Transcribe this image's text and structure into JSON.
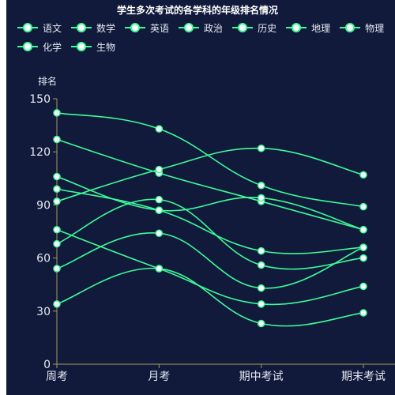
{
  "chart_data": {
    "type": "line",
    "title": "学生多次考试的各学科的年级排名情况",
    "ylabel": "排名",
    "xlabel": "",
    "ylim": [
      0,
      150
    ],
    "yticks": [
      0,
      30,
      60,
      90,
      120,
      150
    ],
    "categories": [
      "周考",
      "月考",
      "期中考试",
      "期末考试"
    ],
    "legend_position": "top",
    "series": [
      {
        "name": "语文",
        "values": [
          142,
          133,
          101,
          89
        ]
      },
      {
        "name": "数学",
        "values": [
          127,
          108,
          92,
          76
        ]
      },
      {
        "name": "英语",
        "values": [
          106,
          87,
          94,
          76
        ]
      },
      {
        "name": "政治",
        "values": [
          99,
          87,
          64,
          66
        ]
      },
      {
        "name": "历史",
        "values": [
          92,
          110,
          122,
          107
        ]
      },
      {
        "name": "地理",
        "values": [
          76,
          54,
          34,
          44
        ]
      },
      {
        "name": "物理",
        "values": [
          68,
          93,
          56,
          60
        ]
      },
      {
        "name": "化学",
        "values": [
          54,
          74,
          43,
          66
        ]
      },
      {
        "name": "生物",
        "values": [
          34,
          54,
          23,
          29
        ]
      }
    ]
  },
  "colors": {
    "line": "#3dfb98",
    "point_fill": "#ffffff",
    "axis": "#a39c55",
    "text": "#e6e9f2",
    "background": "#111a3b"
  }
}
